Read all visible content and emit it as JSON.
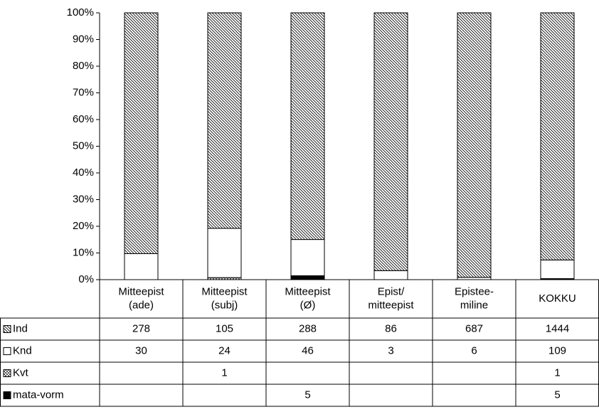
{
  "chart_data": {
    "type": "bar",
    "stacking": "percent",
    "categories": [
      [
        "Mitteepist",
        "(ade)"
      ],
      [
        "Mitteepist",
        "(subj)"
      ],
      [
        "Mitteepist",
        "(Ø)"
      ],
      [
        "Epist/",
        "mitteepist"
      ],
      [
        "Epistee-",
        "miline"
      ],
      [
        "KOKKU"
      ]
    ],
    "series": [
      {
        "name": "Ind",
        "color": "#000000",
        "pattern": "hatch",
        "values": [
          278,
          105,
          288,
          86,
          687,
          1444
        ]
      },
      {
        "name": "Knd",
        "color": "#ffffff",
        "pattern": "none",
        "values": [
          30,
          24,
          46,
          3,
          6,
          109
        ]
      },
      {
        "name": "Kvt",
        "color": "#000000",
        "pattern": "crosshatch",
        "values": [
          null,
          1,
          null,
          null,
          null,
          1
        ]
      },
      {
        "name": "mata-vorm",
        "color": "#000000",
        "pattern": "solid",
        "values": [
          null,
          null,
          5,
          null,
          null,
          5
        ]
      }
    ],
    "ylim": [
      0,
      100
    ],
    "yticks": [
      {
        "value": 0,
        "label": "0%"
      },
      {
        "value": 10,
        "label": "10%"
      },
      {
        "value": 20,
        "label": "20%"
      },
      {
        "value": 30,
        "label": "30%"
      },
      {
        "value": 40,
        "label": "40%"
      },
      {
        "value": 50,
        "label": "50%"
      },
      {
        "value": 60,
        "label": "60%"
      },
      {
        "value": 70,
        "label": "70%"
      },
      {
        "value": 80,
        "label": "80%"
      },
      {
        "value": 90,
        "label": "90%"
      },
      {
        "value": 100,
        "label": "100%"
      }
    ],
    "data_table": true
  }
}
